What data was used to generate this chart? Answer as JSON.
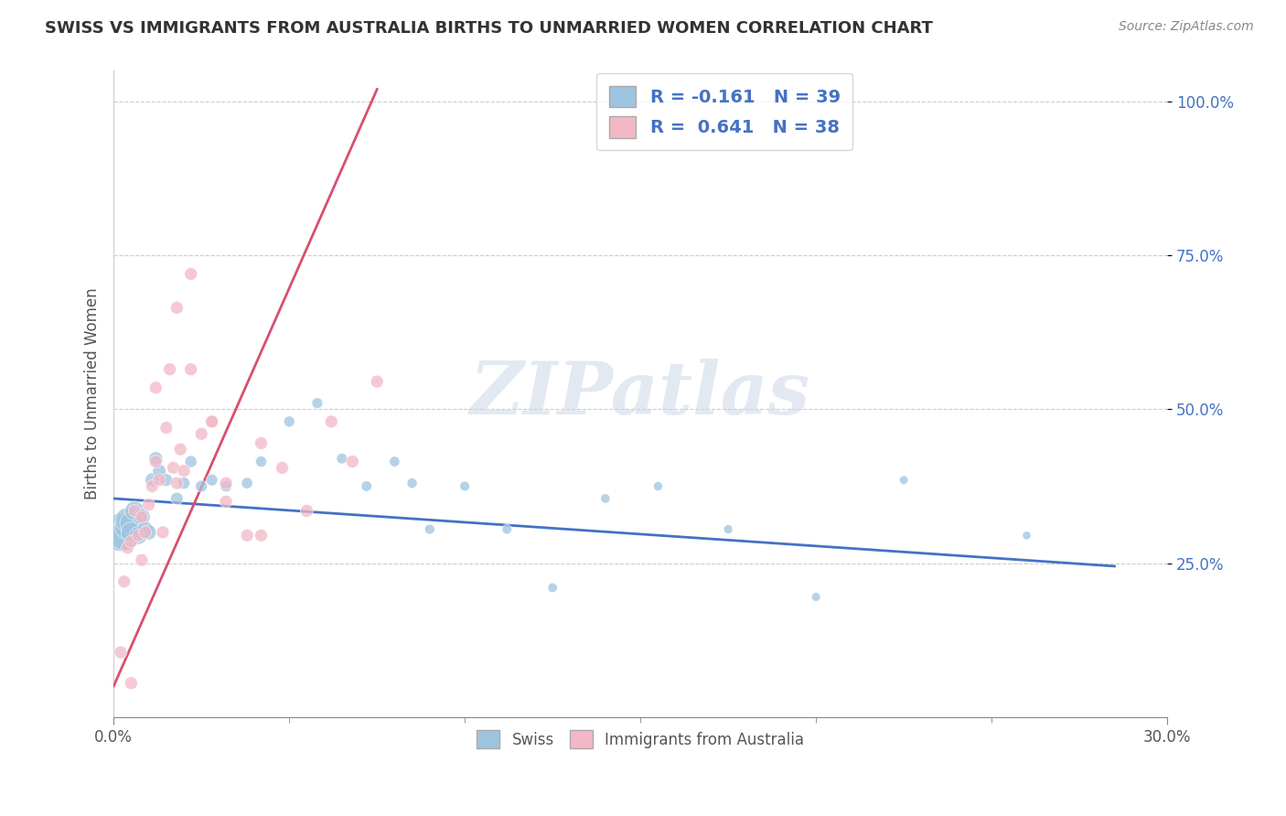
{
  "title": "SWISS VS IMMIGRANTS FROM AUSTRALIA BIRTHS TO UNMARRIED WOMEN CORRELATION CHART",
  "source": "Source: ZipAtlas.com",
  "ylabel": "Births to Unmarried Women",
  "xlim": [
    0.0,
    0.3
  ],
  "ylim": [
    0.0,
    1.05
  ],
  "xtick_positions": [
    0.0,
    0.3
  ],
  "xticklabels": [
    "0.0%",
    "30.0%"
  ],
  "ytick_right": [
    0.25,
    0.5,
    0.75,
    1.0
  ],
  "ytickright_labels": [
    "25.0%",
    "50.0%",
    "75.0%",
    "100.0%"
  ],
  "swiss_R": -0.161,
  "swiss_N": 39,
  "australia_R": 0.641,
  "australia_N": 38,
  "swiss_color": "#9ec4e0",
  "australia_color": "#f2b8c6",
  "swiss_line_color": "#4472c4",
  "australia_line_color": "#d94f6e",
  "legend_label_swiss": "Swiss",
  "legend_label_australia": "Immigrants from Australia",
  "watermark": "ZIPatlas",
  "swiss_x": [
    0.002,
    0.003,
    0.004,
    0.004,
    0.005,
    0.005,
    0.006,
    0.007,
    0.008,
    0.009,
    0.01,
    0.011,
    0.012,
    0.013,
    0.015,
    0.018,
    0.02,
    0.022,
    0.025,
    0.028,
    0.032,
    0.038,
    0.042,
    0.05,
    0.058,
    0.065,
    0.072,
    0.08,
    0.085,
    0.09,
    0.1,
    0.112,
    0.125,
    0.14,
    0.155,
    0.175,
    0.2,
    0.225,
    0.26
  ],
  "swiss_y": [
    0.3,
    0.295,
    0.31,
    0.32,
    0.315,
    0.3,
    0.335,
    0.295,
    0.325,
    0.305,
    0.3,
    0.385,
    0.42,
    0.4,
    0.385,
    0.355,
    0.38,
    0.415,
    0.375,
    0.385,
    0.375,
    0.38,
    0.415,
    0.48,
    0.51,
    0.42,
    0.375,
    0.415,
    0.38,
    0.305,
    0.375,
    0.305,
    0.21,
    0.355,
    0.375,
    0.305,
    0.195,
    0.385,
    0.295
  ],
  "swiss_sizes": [
    900,
    550,
    420,
    380,
    320,
    260,
    230,
    200,
    175,
    155,
    140,
    125,
    115,
    108,
    100,
    95,
    90,
    88,
    85,
    82,
    80,
    78,
    76,
    74,
    72,
    70,
    68,
    66,
    64,
    62,
    60,
    58,
    56,
    54,
    52,
    50,
    48,
    46,
    44
  ],
  "australia_x": [
    0.002,
    0.003,
    0.004,
    0.005,
    0.006,
    0.007,
    0.008,
    0.009,
    0.01,
    0.011,
    0.012,
    0.013,
    0.014,
    0.015,
    0.016,
    0.017,
    0.018,
    0.019,
    0.02,
    0.022,
    0.025,
    0.028,
    0.032,
    0.038,
    0.042,
    0.048,
    0.055,
    0.062,
    0.068,
    0.075,
    0.028,
    0.032,
    0.018,
    0.022,
    0.042,
    0.012,
    0.008,
    0.005
  ],
  "australia_y": [
    0.105,
    0.22,
    0.275,
    0.285,
    0.335,
    0.295,
    0.255,
    0.3,
    0.345,
    0.375,
    0.415,
    0.385,
    0.3,
    0.47,
    0.565,
    0.405,
    0.665,
    0.435,
    0.4,
    0.565,
    0.46,
    0.48,
    0.35,
    0.295,
    0.445,
    0.405,
    0.335,
    0.48,
    0.415,
    0.545,
    0.48,
    0.38,
    0.38,
    0.72,
    0.295,
    0.535,
    0.325,
    0.055
  ],
  "australia_sizes": [
    100,
    100,
    100,
    100,
    100,
    100,
    100,
    100,
    100,
    100,
    100,
    100,
    100,
    100,
    100,
    100,
    100,
    100,
    100,
    100,
    100,
    100,
    100,
    100,
    100,
    100,
    100,
    100,
    100,
    100,
    100,
    100,
    100,
    100,
    100,
    100,
    100,
    100
  ],
  "swiss_trend_x": [
    0.0,
    0.285
  ],
  "swiss_trend_y": [
    0.355,
    0.245
  ],
  "australia_trend_x": [
    0.0,
    0.075
  ],
  "australia_trend_y": [
    0.05,
    1.02
  ],
  "grid_yticks": [
    0.0,
    0.25,
    0.5,
    0.75,
    1.0
  ]
}
